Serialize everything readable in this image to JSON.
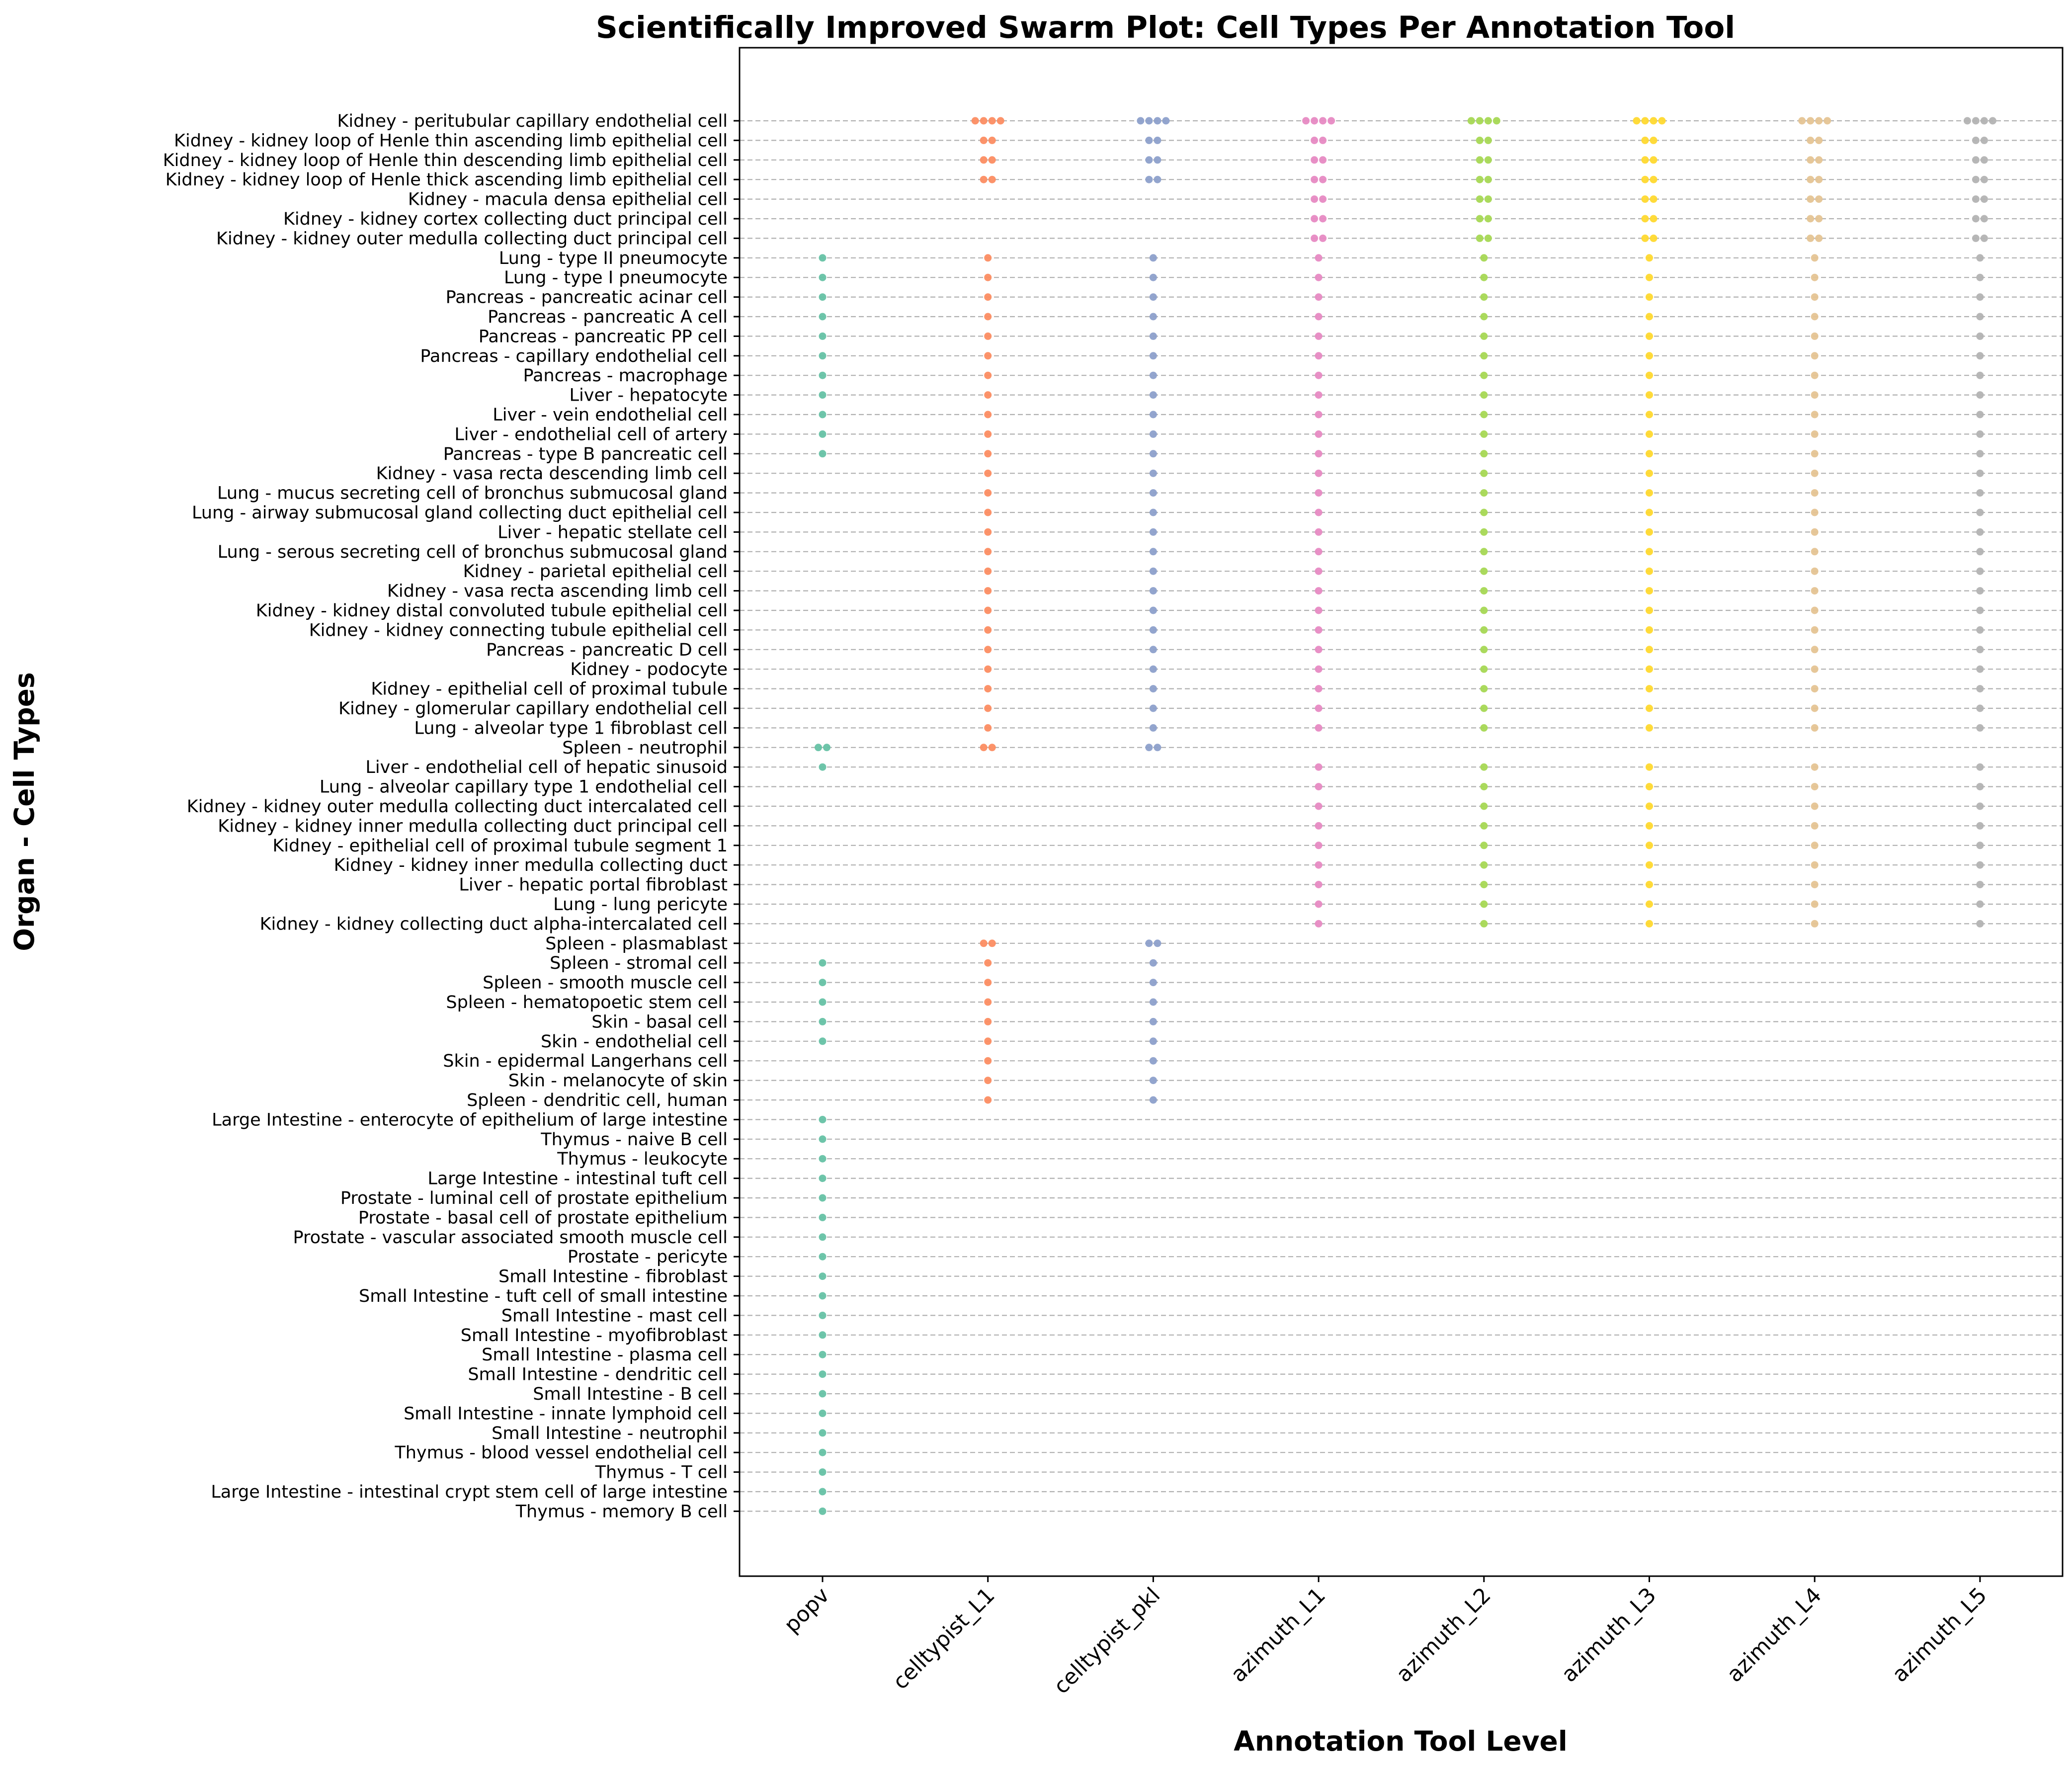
{
  "chart_data": {
    "type": "scatter",
    "subtype": "swarm",
    "title": "Scientifically Improved Swarm Plot: Cell Types Per Annotation Tool",
    "xlabel": "Annotation Tool Level",
    "ylabel": "Organ - Cell Types",
    "grid": "horizontal dashed",
    "tools": [
      "popv",
      "celltypist_L1",
      "celltypist_pkl",
      "azimuth_L1",
      "azimuth_L2",
      "azimuth_L3",
      "azimuth_L4",
      "azimuth_L5"
    ],
    "colors": {
      "popv": "#66c2a5",
      "celltypist_L1": "#fc8d62",
      "celltypist_pkl": "#8da0cb",
      "azimuth_L1": "#e78ac3",
      "azimuth_L2": "#a6d854",
      "azimuth_L3": "#ffd92f",
      "azimuth_L4": "#e5c494",
      "azimuth_L5": "#b3b3b3"
    },
    "categories": [
      "Kidney - peritubular capillary endothelial cell",
      "Kidney - kidney loop of Henle thin ascending limb epithelial cell",
      "Kidney - kidney loop of Henle thin descending limb epithelial cell",
      "Kidney - kidney loop of Henle thick ascending limb epithelial cell",
      "Kidney - macula densa epithelial cell",
      "Kidney - kidney cortex collecting duct principal cell",
      "Kidney - kidney outer medulla collecting duct principal cell",
      "Lung - type II pneumocyte",
      "Lung - type I pneumocyte",
      "Pancreas - pancreatic acinar cell",
      "Pancreas - pancreatic A cell",
      "Pancreas - pancreatic PP cell",
      "Pancreas - capillary endothelial cell",
      "Pancreas - macrophage",
      "Liver - hepatocyte",
      "Liver - vein endothelial cell",
      "Liver - endothelial cell of artery",
      "Pancreas - type B pancreatic cell",
      "Kidney - vasa recta descending limb cell",
      "Lung - mucus secreting cell of bronchus submucosal gland",
      "Lung - airway submucosal gland collecting duct epithelial cell",
      "Liver - hepatic stellate cell",
      "Lung - serous secreting cell of bronchus submucosal gland",
      "Kidney - parietal epithelial cell",
      "Kidney - vasa recta ascending limb cell",
      "Kidney - kidney distal convoluted tubule epithelial cell",
      "Kidney - kidney connecting tubule epithelial cell",
      "Pancreas - pancreatic D cell",
      "Kidney - podocyte",
      "Kidney - epithelial cell of proximal tubule",
      "Kidney - glomerular capillary endothelial cell",
      "Lung - alveolar type 1 fibroblast cell",
      "Spleen - neutrophil",
      "Liver - endothelial cell of hepatic sinusoid",
      "Lung - alveolar capillary type 1 endothelial cell",
      "Kidney - kidney outer medulla collecting duct intercalated cell",
      "Kidney - kidney inner medulla collecting duct principal cell",
      "Kidney - epithelial cell of proximal tubule segment 1",
      "Kidney - kidney inner medulla collecting duct",
      "Liver - hepatic portal fibroblast",
      "Lung - lung pericyte",
      "Kidney - kidney collecting duct alpha-intercalated cell",
      "Spleen - plasmablast",
      "Spleen - stromal cell",
      "Spleen - smooth muscle cell",
      "Spleen - hematopoetic stem cell",
      "Skin - basal cell",
      "Skin - endothelial cell",
      "Skin - epidermal Langerhans cell",
      "Skin - melanocyte of skin",
      "Spleen - dendritic cell, human",
      "Large Intestine - enterocyte of epithelium of large intestine",
      "Thymus - naive B cell",
      "Thymus - leukocyte",
      "Large Intestine - intestinal tuft cell",
      "Prostate - luminal cell of prostate epithelium",
      "Prostate - basal cell of prostate epithelium",
      "Prostate - vascular associated smooth muscle cell",
      "Prostate - pericyte",
      "Small Intestine - fibroblast",
      "Small Intestine - tuft cell of small intestine",
      "Small Intestine - mast cell",
      "Small Intestine - myofibroblast",
      "Small Intestine - plasma cell",
      "Small Intestine - dendritic cell",
      "Small Intestine - B cell",
      "Small Intestine - innate lymphoid cell",
      "Small Intestine - neutrophil",
      "Thymus - blood vessel endothelial cell",
      "Thymus - T cell",
      "Large Intestine - intestinal crypt stem cell of large intestine",
      "Thymus - memory B cell"
    ],
    "counts": {
      "popv": [
        0,
        0,
        0,
        0,
        0,
        0,
        0,
        1,
        1,
        1,
        1,
        1,
        1,
        1,
        1,
        1,
        1,
        1,
        0,
        0,
        0,
        0,
        0,
        0,
        0,
        0,
        0,
        0,
        0,
        0,
        0,
        0,
        2,
        1,
        0,
        0,
        0,
        0,
        0,
        0,
        0,
        0,
        0,
        1,
        1,
        1,
        1,
        1,
        0,
        0,
        0,
        1,
        1,
        1,
        1,
        1,
        1,
        1,
        1,
        1,
        1,
        1,
        1,
        1,
        1,
        1,
        1,
        1,
        1,
        1,
        1,
        1
      ],
      "celltypist_L1": [
        4,
        2,
        2,
        2,
        0,
        0,
        0,
        1,
        1,
        1,
        1,
        1,
        1,
        1,
        1,
        1,
        1,
        1,
        1,
        1,
        1,
        1,
        1,
        1,
        1,
        1,
        1,
        1,
        1,
        1,
        1,
        1,
        2,
        0,
        0,
        0,
        0,
        0,
        0,
        0,
        0,
        0,
        2,
        1,
        1,
        1,
        1,
        1,
        1,
        1,
        1,
        0,
        0,
        0,
        0,
        0,
        0,
        0,
        0,
        0,
        0,
        0,
        0,
        0,
        0,
        0,
        0,
        0,
        0,
        0,
        0,
        0
      ],
      "celltypist_pkl": [
        4,
        2,
        2,
        2,
        0,
        0,
        0,
        1,
        1,
        1,
        1,
        1,
        1,
        1,
        1,
        1,
        1,
        1,
        1,
        1,
        1,
        1,
        1,
        1,
        1,
        1,
        1,
        1,
        1,
        1,
        1,
        1,
        2,
        0,
        0,
        0,
        0,
        0,
        0,
        0,
        0,
        0,
        2,
        1,
        1,
        1,
        1,
        1,
        1,
        1,
        1,
        0,
        0,
        0,
        0,
        0,
        0,
        0,
        0,
        0,
        0,
        0,
        0,
        0,
        0,
        0,
        0,
        0,
        0,
        0,
        0,
        0
      ],
      "azimuth_L1": [
        4,
        2,
        2,
        2,
        2,
        2,
        2,
        1,
        1,
        1,
        1,
        1,
        1,
        1,
        1,
        1,
        1,
        1,
        1,
        1,
        1,
        1,
        1,
        1,
        1,
        1,
        1,
        1,
        1,
        1,
        1,
        1,
        0,
        1,
        1,
        1,
        1,
        1,
        1,
        1,
        1,
        1,
        0,
        0,
        0,
        0,
        0,
        0,
        0,
        0,
        0,
        0,
        0,
        0,
        0,
        0,
        0,
        0,
        0,
        0,
        0,
        0,
        0,
        0,
        0,
        0,
        0,
        0,
        0,
        0,
        0,
        0
      ],
      "azimuth_L2": [
        4,
        2,
        2,
        2,
        2,
        2,
        2,
        1,
        1,
        1,
        1,
        1,
        1,
        1,
        1,
        1,
        1,
        1,
        1,
        1,
        1,
        1,
        1,
        1,
        1,
        1,
        1,
        1,
        1,
        1,
        1,
        1,
        0,
        1,
        1,
        1,
        1,
        1,
        1,
        1,
        1,
        1,
        0,
        0,
        0,
        0,
        0,
        0,
        0,
        0,
        0,
        0,
        0,
        0,
        0,
        0,
        0,
        0,
        0,
        0,
        0,
        0,
        0,
        0,
        0,
        0,
        0,
        0,
        0,
        0,
        0,
        0
      ],
      "azimuth_L3": [
        4,
        2,
        2,
        2,
        2,
        2,
        2,
        1,
        1,
        1,
        1,
        1,
        1,
        1,
        1,
        1,
        1,
        1,
        1,
        1,
        1,
        1,
        1,
        1,
        1,
        1,
        1,
        1,
        1,
        1,
        1,
        1,
        0,
        1,
        1,
        1,
        1,
        1,
        1,
        1,
        1,
        1,
        0,
        0,
        0,
        0,
        0,
        0,
        0,
        0,
        0,
        0,
        0,
        0,
        0,
        0,
        0,
        0,
        0,
        0,
        0,
        0,
        0,
        0,
        0,
        0,
        0,
        0,
        0,
        0,
        0,
        0
      ],
      "azimuth_L4": [
        4,
        2,
        2,
        2,
        2,
        2,
        2,
        1,
        1,
        1,
        1,
        1,
        1,
        1,
        1,
        1,
        1,
        1,
        1,
        1,
        1,
        1,
        1,
        1,
        1,
        1,
        1,
        1,
        1,
        1,
        1,
        1,
        0,
        1,
        1,
        1,
        1,
        1,
        1,
        1,
        1,
        1,
        0,
        0,
        0,
        0,
        0,
        0,
        0,
        0,
        0,
        0,
        0,
        0,
        0,
        0,
        0,
        0,
        0,
        0,
        0,
        0,
        0,
        0,
        0,
        0,
        0,
        0,
        0,
        0,
        0,
        0
      ],
      "azimuth_L5": [
        4,
        2,
        2,
        2,
        2,
        2,
        2,
        1,
        1,
        1,
        1,
        1,
        1,
        1,
        1,
        1,
        1,
        1,
        1,
        1,
        1,
        1,
        1,
        1,
        1,
        1,
        1,
        1,
        1,
        1,
        1,
        1,
        0,
        1,
        1,
        1,
        1,
        1,
        1,
        1,
        1,
        1,
        0,
        0,
        0,
        0,
        0,
        0,
        0,
        0,
        0,
        0,
        0,
        0,
        0,
        0,
        0,
        0,
        0,
        0,
        0,
        0,
        0,
        0,
        0,
        0,
        0,
        0,
        0,
        0,
        0,
        0
      ]
    }
  }
}
